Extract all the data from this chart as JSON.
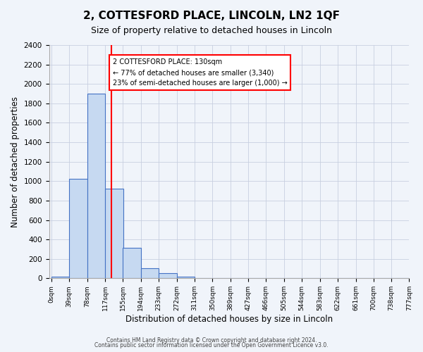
{
  "title": "2, COTTESFORD PLACE, LINCOLN, LN2 1QF",
  "subtitle": "Size of property relative to detached houses in Lincoln",
  "xlabel": "Distribution of detached houses by size in Lincoln",
  "ylabel": "Number of detached properties",
  "bar_color": "#c6d9f1",
  "bar_edge_color": "#4472c4",
  "bin_labels": [
    "0sqm",
    "39sqm",
    "78sqm",
    "117sqm",
    "155sqm",
    "194sqm",
    "233sqm",
    "272sqm",
    "311sqm",
    "350sqm",
    "389sqm",
    "427sqm",
    "466sqm",
    "505sqm",
    "544sqm",
    "583sqm",
    "622sqm",
    "661sqm",
    "700sqm",
    "738sqm",
    "777sqm"
  ],
  "bin_edges": [
    0,
    39,
    78,
    117,
    155,
    194,
    233,
    272,
    311,
    350,
    389,
    427,
    466,
    505,
    544,
    583,
    622,
    661,
    700,
    738,
    777
  ],
  "bar_values": [
    20,
    1025,
    1900,
    920,
    315,
    105,
    50,
    20,
    0,
    0,
    0,
    0,
    0,
    0,
    0,
    0,
    0,
    0,
    0,
    0
  ],
  "ylim": [
    0,
    2400
  ],
  "yticks": [
    0,
    200,
    400,
    600,
    800,
    1000,
    1200,
    1400,
    1600,
    1800,
    2000,
    2200,
    2400
  ],
  "property_line_x": 130,
  "property_line_color": "#ff0000",
  "annotation_text": "2 COTTESFORD PLACE: 130sqm\n← 77% of detached houses are smaller (3,340)\n23% of semi-detached houses are larger (1,000) →",
  "annotation_box_color": "#ffffff",
  "annotation_box_edge": "#ff0000",
  "footer_line1": "Contains HM Land Registry data © Crown copyright and database right 2024.",
  "footer_line2": "Contains public sector information licensed under the Open Government Licence v3.0.",
  "background_color": "#f0f4fa",
  "bin_width": 39
}
